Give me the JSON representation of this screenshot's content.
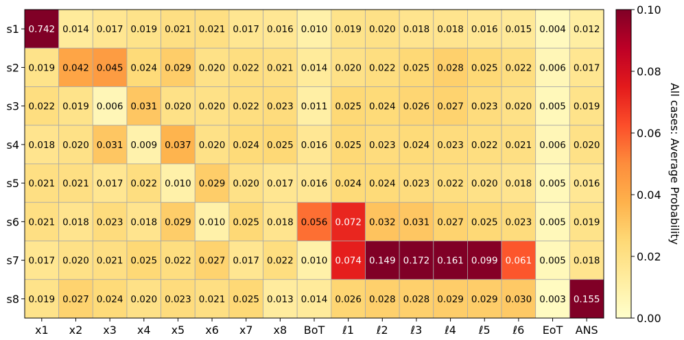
{
  "chart_data": {
    "type": "heatmap",
    "columns": [
      "x1",
      "x2",
      "x3",
      "x4",
      "x5",
      "x6",
      "x7",
      "x8",
      "BoT",
      "ℓ1",
      "ℓ2",
      "ℓ3",
      "ℓ4",
      "ℓ5",
      "ℓ6",
      "EoT",
      "ANS"
    ],
    "rows": [
      "s1",
      "s2",
      "s3",
      "s4",
      "s5",
      "s6",
      "s7",
      "s8"
    ],
    "values": [
      [
        0.742,
        0.014,
        0.017,
        0.019,
        0.021,
        0.021,
        0.017,
        0.016,
        0.01,
        0.019,
        0.02,
        0.018,
        0.018,
        0.016,
        0.015,
        0.004,
        0.012
      ],
      [
        0.019,
        0.042,
        0.045,
        0.024,
        0.029,
        0.02,
        0.022,
        0.021,
        0.014,
        0.02,
        0.022,
        0.025,
        0.028,
        0.025,
        0.022,
        0.006,
        0.017
      ],
      [
        0.022,
        0.019,
        0.006,
        0.031,
        0.02,
        0.02,
        0.022,
        0.023,
        0.011,
        0.025,
        0.024,
        0.026,
        0.027,
        0.023,
        0.02,
        0.005,
        0.019
      ],
      [
        0.018,
        0.02,
        0.031,
        0.009,
        0.037,
        0.02,
        0.024,
        0.025,
        0.016,
        0.025,
        0.023,
        0.024,
        0.023,
        0.022,
        0.021,
        0.006,
        0.02
      ],
      [
        0.021,
        0.021,
        0.017,
        0.022,
        0.01,
        0.029,
        0.02,
        0.017,
        0.016,
        0.024,
        0.024,
        0.023,
        0.022,
        0.02,
        0.018,
        0.005,
        0.016
      ],
      [
        0.021,
        0.018,
        0.023,
        0.018,
        0.029,
        0.01,
        0.025,
        0.018,
        0.056,
        0.072,
        0.032,
        0.031,
        0.027,
        0.025,
        0.023,
        0.005,
        0.019
      ],
      [
        0.017,
        0.02,
        0.021,
        0.025,
        0.022,
        0.027,
        0.017,
        0.022,
        0.01,
        0.074,
        0.149,
        0.172,
        0.161,
        0.099,
        0.061,
        0.005,
        0.018
      ],
      [
        0.019,
        0.027,
        0.024,
        0.02,
        0.023,
        0.021,
        0.025,
        0.013,
        0.014,
        0.026,
        0.028,
        0.028,
        0.029,
        0.029,
        0.03,
        0.003,
        0.155
      ]
    ],
    "colorbar": {
      "label": "All cases: Average Probability",
      "range": [
        0.0,
        0.1
      ],
      "ticks": [
        "0.00",
        "0.02",
        "0.04",
        "0.06",
        "0.08",
        "0.10"
      ],
      "colormap": "YlOrRd"
    }
  }
}
